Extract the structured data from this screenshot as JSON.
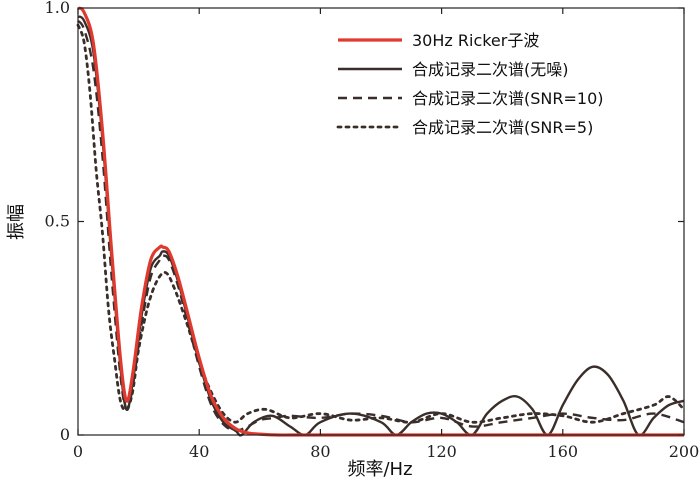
{
  "chart_data": {
    "type": "line",
    "xlabel": "频率/Hz",
    "ylabel": "振幅",
    "xlim": [
      0,
      200
    ],
    "ylim": [
      0,
      1.0
    ],
    "x_ticks": [
      0,
      40,
      80,
      120,
      160,
      200
    ],
    "y_ticks": [
      0,
      0.5,
      1.0
    ],
    "x_tick_labels": [
      "0",
      "40",
      "80",
      "120",
      "160",
      "200"
    ],
    "y_tick_labels": [
      "0",
      "0.5",
      "1.0"
    ],
    "grid": false,
    "legend_position": "top-right",
    "series": [
      {
        "name": "30Hz  Ricker子波",
        "color": "#e03a2f",
        "dash": "solid",
        "x": [
          0,
          2,
          5,
          8,
          11,
          14,
          16,
          18,
          21,
          24,
          27,
          28,
          30,
          33,
          36,
          40,
          44,
          48,
          52,
          56,
          60,
          66,
          72,
          80,
          100,
          140,
          200
        ],
        "y": [
          1.0,
          0.99,
          0.92,
          0.72,
          0.44,
          0.18,
          0.08,
          0.14,
          0.3,
          0.41,
          0.44,
          0.44,
          0.43,
          0.37,
          0.29,
          0.18,
          0.09,
          0.04,
          0.015,
          0.005,
          0.002,
          0.0,
          0.0,
          0.0,
          0.0,
          0.0,
          0.0
        ]
      },
      {
        "name": "合成记录二次谱(无噪)",
        "color": "#3a2e2a",
        "dash": "solid",
        "x": [
          0,
          2,
          5,
          8,
          11,
          14,
          16,
          18,
          21,
          24,
          27,
          28,
          30,
          33,
          36,
          40,
          44,
          48,
          52,
          54,
          58,
          64,
          70,
          75,
          80,
          90,
          100,
          105,
          110,
          115,
          120,
          125,
          130,
          135,
          140,
          145,
          150,
          155,
          160,
          165,
          170,
          175,
          180,
          185,
          190,
          195,
          200
        ],
        "y": [
          0.98,
          0.97,
          0.9,
          0.7,
          0.42,
          0.16,
          0.06,
          0.12,
          0.28,
          0.39,
          0.42,
          0.43,
          0.42,
          0.36,
          0.28,
          0.17,
          0.08,
          0.03,
          0.01,
          0.0,
          0.03,
          0.045,
          0.02,
          0.0,
          0.03,
          0.05,
          0.03,
          0.0,
          0.03,
          0.05,
          0.05,
          0.03,
          0.0,
          0.05,
          0.08,
          0.09,
          0.06,
          0.0,
          0.07,
          0.13,
          0.16,
          0.14,
          0.08,
          0.0,
          0.04,
          0.07,
          0.08
        ]
      },
      {
        "name": "合成记录二次谱(SNR=10)",
        "color": "#3a2e2a",
        "dash": "dashed",
        "x": [
          0,
          2,
          5,
          8,
          11,
          14,
          16,
          18,
          21,
          24,
          27,
          28,
          30,
          33,
          36,
          40,
          44,
          48,
          52,
          56,
          60,
          65,
          70,
          80,
          90,
          100,
          110,
          120,
          130,
          140,
          150,
          160,
          170,
          180,
          190,
          200
        ],
        "y": [
          0.97,
          0.95,
          0.86,
          0.66,
          0.38,
          0.14,
          0.06,
          0.11,
          0.26,
          0.37,
          0.41,
          0.42,
          0.41,
          0.35,
          0.27,
          0.16,
          0.07,
          0.025,
          0.01,
          0.02,
          0.035,
          0.04,
          0.045,
          0.04,
          0.05,
          0.045,
          0.03,
          0.04,
          0.02,
          0.03,
          0.04,
          0.05,
          0.04,
          0.035,
          0.05,
          0.03
        ]
      },
      {
        "name": "合成记录二次谱(SNR=5)",
        "color": "#3a2e2a",
        "dash": "dotted",
        "x": [
          0,
          2,
          4,
          6,
          8,
          10,
          12,
          14,
          16,
          18,
          20,
          23,
          26,
          29,
          32,
          36,
          40,
          44,
          48,
          52,
          56,
          62,
          70,
          80,
          90,
          100,
          110,
          120,
          130,
          140,
          150,
          160,
          170,
          180,
          190,
          195,
          200
        ],
        "y": [
          0.96,
          0.92,
          0.8,
          0.62,
          0.48,
          0.3,
          0.18,
          0.08,
          0.06,
          0.1,
          0.2,
          0.3,
          0.36,
          0.38,
          0.34,
          0.26,
          0.17,
          0.1,
          0.05,
          0.03,
          0.05,
          0.06,
          0.04,
          0.05,
          0.035,
          0.04,
          0.03,
          0.05,
          0.03,
          0.04,
          0.05,
          0.045,
          0.03,
          0.05,
          0.07,
          0.09,
          0.06
        ]
      }
    ]
  }
}
